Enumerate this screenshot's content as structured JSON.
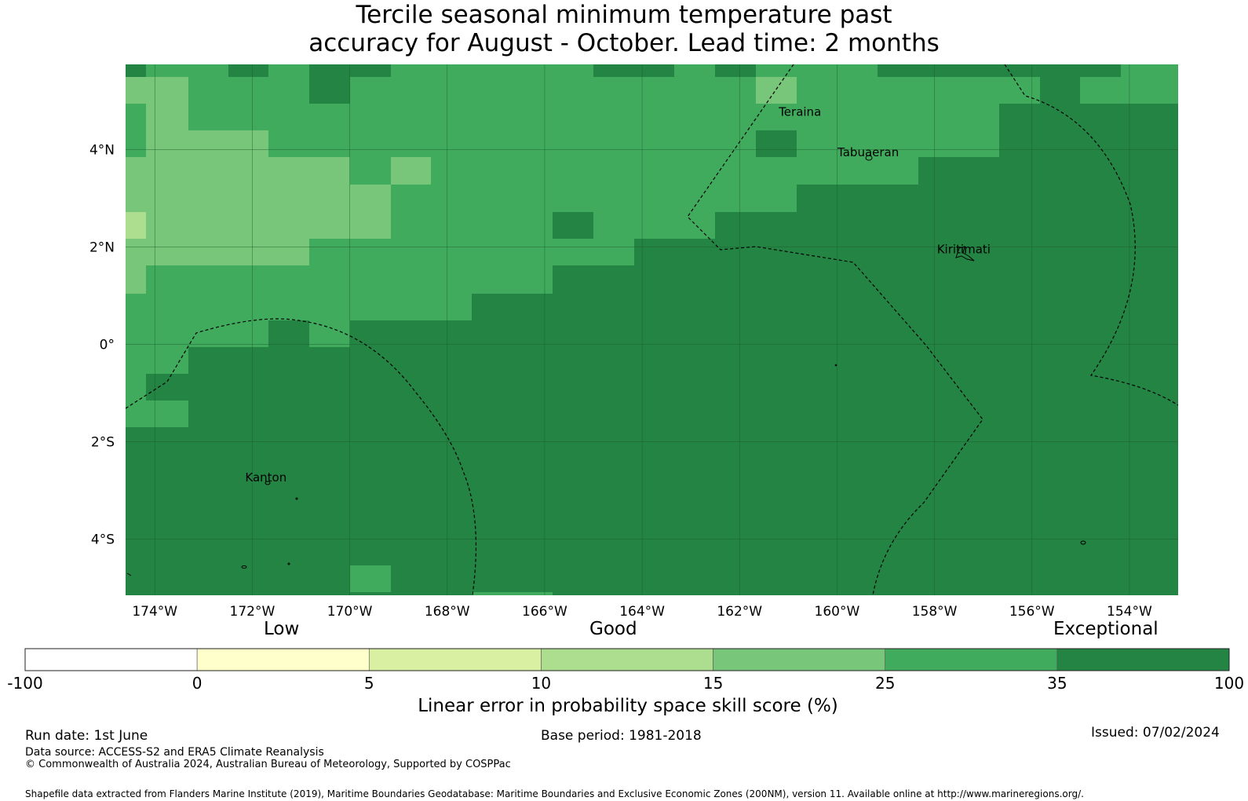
{
  "title": {
    "line1": "Tercile seasonal minimum temperature past",
    "line2": "accuracy for August - October. Lead time: 2 months"
  },
  "map": {
    "lon_range": [
      -174.6,
      -153.0
    ],
    "lat_range": [
      -5.15,
      5.75
    ],
    "lon_ticks": [
      {
        "value": -174,
        "label": "174°W"
      },
      {
        "value": -172,
        "label": "172°W"
      },
      {
        "value": -170,
        "label": "170°W"
      },
      {
        "value": -168,
        "label": "168°W"
      },
      {
        "value": -166,
        "label": "166°W"
      },
      {
        "value": -164,
        "label": "164°W"
      },
      {
        "value": -162,
        "label": "162°W"
      },
      {
        "value": -160,
        "label": "160°W"
      },
      {
        "value": -158,
        "label": "158°W"
      },
      {
        "value": -156,
        "label": "156°W"
      },
      {
        "value": -154,
        "label": "154°W"
      }
    ],
    "lat_ticks": [
      {
        "value": 4,
        "label": "4°N"
      },
      {
        "value": 2,
        "label": "2°N"
      },
      {
        "value": 0,
        "label": "0°"
      },
      {
        "value": -2,
        "label": "2°S"
      },
      {
        "value": -4,
        "label": "4°S"
      }
    ],
    "places": [
      {
        "name": "Teraina",
        "lon": -160.76,
        "lat": 4.69
      },
      {
        "name": "Tabuaeran",
        "lon": -159.36,
        "lat": 3.86
      },
      {
        "name": "Kiritimati",
        "lon": -157.4,
        "lat": 1.87
      },
      {
        "name": "Kanton",
        "lon": -171.72,
        "lat": -2.81
      }
    ],
    "skill_colors": {
      "lt0": "#ffffff",
      "s0_5": "#ffffcc",
      "s5_10": "#d9f0a3",
      "s10_15": "#addd8e",
      "s15_25": "#78c679",
      "s25_35": "#41ab5d",
      "s35_100": "#238443"
    }
  },
  "colorbar": {
    "category_labels": [
      "Low",
      "Good",
      "Exceptional"
    ],
    "tick_labels": [
      "-100",
      "0",
      "5",
      "10",
      "15",
      "25",
      "35",
      "100"
    ],
    "colors": [
      "#ffffff",
      "#ffffcc",
      "#d9f0a3",
      "#addd8e",
      "#78c679",
      "#41ab5d",
      "#238443"
    ],
    "title": "Linear error in probability space skill score (%)"
  },
  "footer": {
    "run_date": "Run date: 1st June",
    "base_period": "Base period: 1981-2018",
    "issued": "Issued: 07/02/2024",
    "data_source": "Data source: ACCESS-S2 and ERA5 Climate Reanalysis",
    "copyright": "© Commonwealth of Australia 2024, Australian Bureau of Meteorology, Supported by COSPPac",
    "shapefile": "Shapefile data extracted from Flanders Marine Institute (2019), Maritime Boundaries Geodatabase: Maritime Boundaries and Exclusive Economic Zones (200NM), version 11. Available online at http://www.marineregions.org/."
  }
}
